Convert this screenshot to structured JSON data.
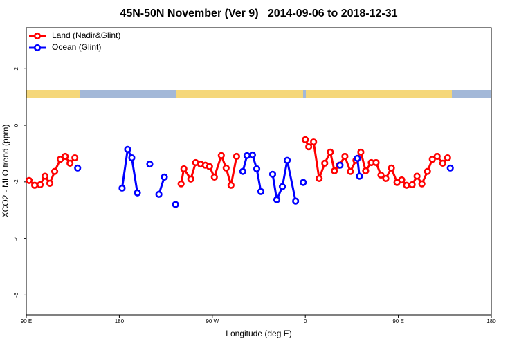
{
  "chart_data": {
    "type": "line",
    "title": "45N-50N November (Ver 9)   2014-09-06 to 2018-12-31",
    "x_label": "Longitude (deg E)",
    "y_label": "XCO2 - MLO trend (ppm)",
    "xlim": [
      90,
      540
    ],
    "ylim": [
      -6.7,
      3.45
    ],
    "xticks": [
      {
        "value": 90,
        "label": "90 E"
      },
      180,
      {
        "value": 270,
        "label": "90 W"
      },
      {
        "value": 360,
        "label": "0"
      },
      {
        "value": 450,
        "label": "90 E"
      },
      {
        "value": 540,
        "label": "180"
      }
    ],
    "yticks": [
      -6,
      -4,
      -2,
      0,
      2
    ],
    "legend": "top-left",
    "series": [
      {
        "name": "Land (Nadir&Glint)",
        "color": "#ff0000",
        "x": [
          92.7,
          98.1,
          103.4,
          108.1,
          112.8,
          117.5,
          122.9,
          127.6,
          132.3,
          137.0,
          null,
          239.8,
          242.5,
          249.2,
          253.9,
          258.6,
          263.3,
          267.3,
          272.0,
          278.7,
          283.4,
          288.1,
          293.5,
          null,
          360.0,
          363.3,
          368.0,
          373.4,
          378.8,
          384.2,
          388.2,
          392.9,
          398.3,
          403.6,
          409.0,
          413.7,
          418.4,
          423.8,
          428.5,
          433.2,
          437.9,
          443.3,
          448.7,
          453.3,
          458.0,
          463.4,
          468.1,
          472.8,
          478.2,
          482.9,
          487.6,
          493.0,
          497.7
        ],
        "values": [
          -1.95,
          -2.12,
          -2.1,
          -1.8,
          -2.05,
          -1.63,
          -1.2,
          -1.1,
          -1.34,
          -1.15,
          null,
          -2.07,
          -1.54,
          -1.9,
          -1.32,
          -1.37,
          -1.41,
          -1.46,
          -1.83,
          -1.07,
          -1.51,
          -2.12,
          -1.1,
          null,
          -0.51,
          -0.76,
          -0.59,
          -1.88,
          -1.34,
          -0.95,
          -1.61,
          -1.41,
          -1.1,
          -1.63,
          -1.24,
          -0.95,
          -1.61,
          -1.32,
          -1.32,
          -1.76,
          -1.88,
          -1.51,
          -2.02,
          -1.93,
          -2.12,
          -2.1,
          -1.8,
          -2.07,
          -1.63,
          -1.2,
          -1.1,
          -1.34,
          -1.15
        ]
      },
      {
        "name": "Ocean (Glint)",
        "color": "#0000ff",
        "x": [
          139.7,
          null,
          182.7,
          188.1,
          192.1,
          197.5,
          null,
          209.5,
          null,
          218.3,
          223.6,
          null,
          234.4,
          null,
          299.5,
          303.6,
          308.9,
          313.0,
          317.0,
          null,
          328.4,
          332.4,
          337.8,
          342.5,
          350.6,
          null,
          358.0,
          null,
          393.6,
          null,
          410.4,
          412.4,
          null,
          500.3
        ],
        "values": [
          -1.51,
          null,
          -2.22,
          -0.85,
          -1.15,
          -2.39,
          null,
          -1.37,
          null,
          -2.44,
          -1.83,
          null,
          -2.8,
          null,
          -1.63,
          -1.07,
          -1.05,
          -1.54,
          -2.34,
          null,
          -1.73,
          -2.63,
          -2.17,
          -1.24,
          -2.68,
          null,
          -2.02,
          null,
          -1.41,
          null,
          -1.17,
          -1.8,
          null,
          -1.51
        ]
      }
    ]
  }
}
